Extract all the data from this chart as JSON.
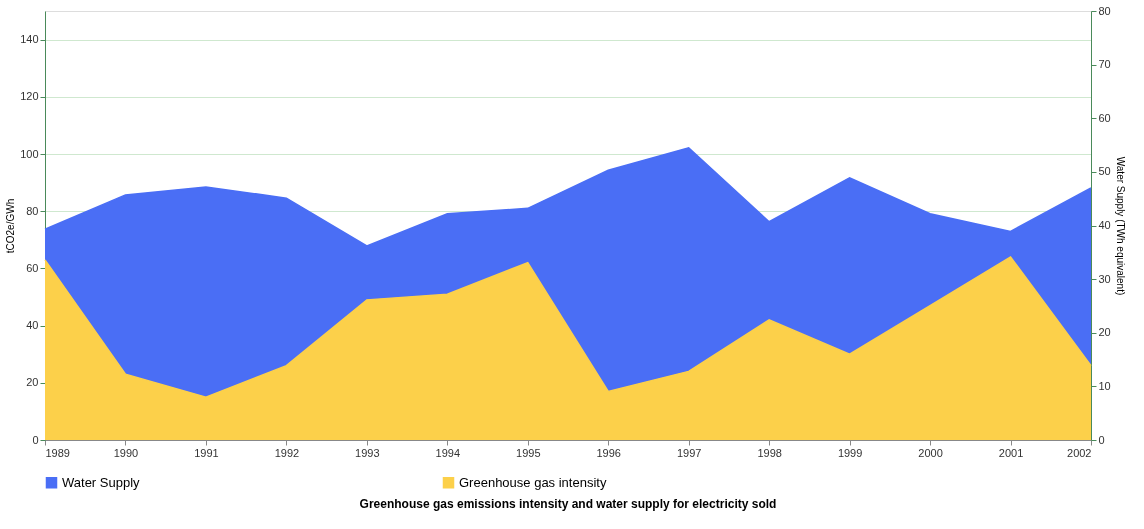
{
  "chart_data": {
    "type": "area",
    "title": "Greenhouse gas emissions intensity and water supply for electricity sold",
    "ylabel": "tCO2e/GWh",
    "y2label": "Water Supply (TWh equivalent)",
    "x": [
      1989,
      1990,
      1991,
      1992,
      1993,
      1994,
      1995,
      1996,
      1997,
      1998,
      1999,
      2000,
      2001,
      2002
    ],
    "xlim": [
      1989,
      2002
    ],
    "xticks": [
      1989,
      1990,
      1991,
      1992,
      1993,
      1994,
      1995,
      1996,
      1997,
      1998,
      1999,
      2000,
      2001,
      2002
    ],
    "ylim": [
      0,
      150
    ],
    "yticks": [
      0,
      20,
      40,
      60,
      80,
      100,
      120,
      140
    ],
    "y2lim": [
      0,
      80
    ],
    "y2ticks": [
      0,
      10,
      20,
      30,
      40,
      50,
      60,
      70,
      80
    ],
    "series": [
      {
        "name": "Water Supply",
        "color": "#4a6ef5",
        "axis": "y2",
        "values": [
          39.3,
          45.7,
          47.2,
          45.1,
          36.2,
          42.2,
          43.2,
          50.3,
          54.5,
          40.7,
          48.9,
          42.2,
          38.9,
          47.0
        ]
      },
      {
        "name": "Greenhouse gas intensity",
        "color": "#fcd04a",
        "values": [
          63,
          23,
          15,
          26,
          49,
          51,
          62,
          17,
          24,
          42,
          30,
          47,
          64,
          26
        ]
      }
    ],
    "grid": "y",
    "legend": "bottom"
  }
}
